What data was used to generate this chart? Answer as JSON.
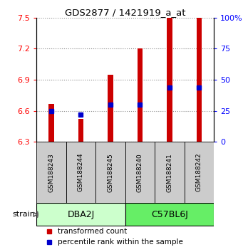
{
  "title": "GDS2877 / 1421919_a_at",
  "samples": [
    "GSM188243",
    "GSM188244",
    "GSM188245",
    "GSM188240",
    "GSM188241",
    "GSM188242"
  ],
  "groups": [
    {
      "name": "DBA2J",
      "indices": [
        0,
        1,
        2
      ],
      "color": "#ccffcc"
    },
    {
      "name": "C57BL6J",
      "indices": [
        3,
        4,
        5
      ],
      "color": "#66ee66"
    }
  ],
  "transformed_counts": [
    6.67,
    6.52,
    6.95,
    7.2,
    7.5,
    7.5
  ],
  "percentile_ranks": [
    25,
    22,
    30,
    30,
    44,
    44
  ],
  "y_min": 6.3,
  "y_max": 7.5,
  "y_ticks": [
    6.3,
    6.6,
    6.9,
    7.2,
    7.5
  ],
  "y_tick_labels": [
    "6.3",
    "6.6",
    "6.9",
    "7.2",
    "7.5"
  ],
  "right_y_ticks": [
    0,
    25,
    50,
    75,
    100
  ],
  "right_y_labels": [
    "0",
    "25",
    "50",
    "75",
    "100%"
  ],
  "bar_color": "#cc0000",
  "percentile_color": "#0000cc",
  "bar_width": 0.18,
  "percentile_marker_size": 5,
  "grid_color": "#888888",
  "sample_box_color": "#cccccc",
  "strain_label": "strain",
  "legend_red_label": "transformed count",
  "legend_blue_label": "percentile rank within the sample"
}
